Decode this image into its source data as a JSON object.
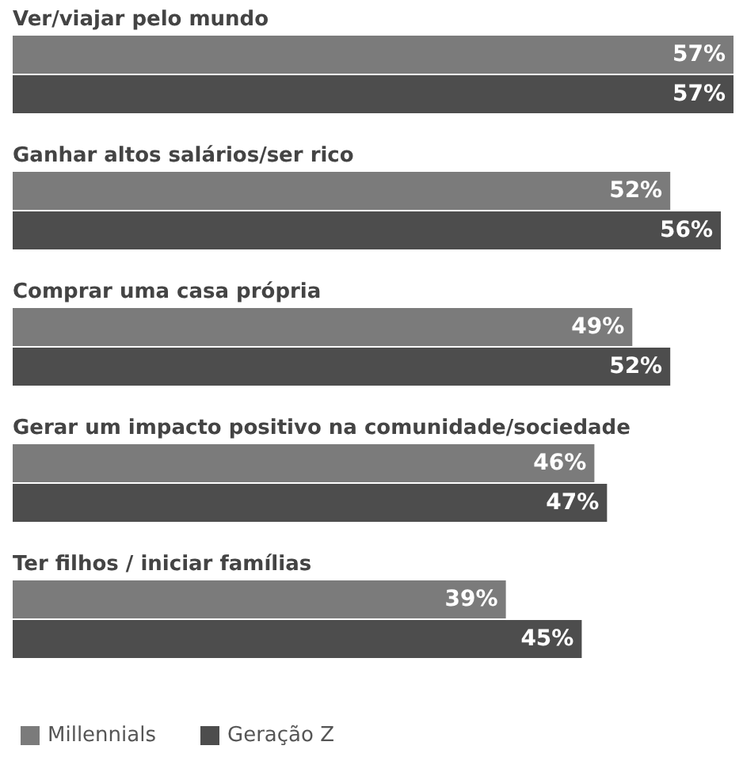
{
  "chart_data": {
    "type": "bar",
    "orientation": "horizontal",
    "categories": [
      "Ver/viajar pelo mundo",
      "Ganhar altos salários/ser rico",
      "Comprar uma casa própria",
      "Gerar um impacto positivo na comunidade/sociedade",
      "Ter filhos / iniciar famílias"
    ],
    "series": [
      {
        "name": "Millennials",
        "color": "#7b7b7b",
        "values": [
          57,
          52,
          49,
          46,
          39
        ],
        "value_labels": [
          "57%",
          "52%",
          "49%",
          "46%",
          "39%"
        ]
      },
      {
        "name": "Geração Z",
        "color": "#4d4d4d",
        "values": [
          57,
          56,
          52,
          47,
          45
        ],
        "value_labels": [
          "57%",
          "56%",
          "52%",
          "47%",
          "45%"
        ]
      }
    ],
    "legend": "bottom left",
    "grid": false
  }
}
